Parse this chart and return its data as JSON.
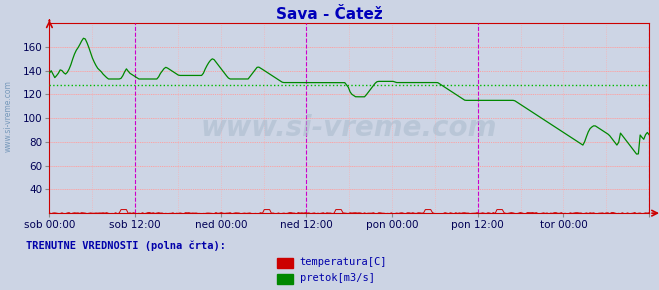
{
  "title": "Sava - Čatež",
  "title_color": "#0000bb",
  "bg_color": "#cdd5e5",
  "plot_bg_color": "#cdd5e5",
  "fig_bg_color": "#ccd4e4",
  "ylim": [
    20,
    180
  ],
  "yticks": [
    40,
    60,
    80,
    100,
    120,
    140,
    160
  ],
  "ytick_labels": [
    "40",
    "60",
    "80",
    "100",
    "120",
    "140",
    "160"
  ],
  "xtick_labels": [
    "sob 00:00",
    "sob 12:00",
    "ned 00:00",
    "ned 12:00",
    "pon 00:00",
    "pon 12:00",
    "tor 00:00",
    ""
  ],
  "pretok_color": "#008800",
  "temperatura_color": "#cc0000",
  "avg_line_color": "#00bb00",
  "avg_line_value": 128,
  "magenta_vlines_x": [
    1,
    3,
    5,
    7
  ],
  "watermark": "www.si-vreme.com",
  "sidebar_text": "www.si-vreme.com",
  "legend_text1": "temperatura[C]",
  "legend_text2": "pretok[m3/s]",
  "legend_title": "TRENUTNE VREDNOSTI (polna črta):",
  "pretok_data": [
    138,
    140,
    137,
    134,
    136,
    138,
    141,
    140,
    138,
    137,
    139,
    142,
    146,
    151,
    155,
    158,
    160,
    163,
    166,
    168,
    166,
    162,
    158,
    153,
    149,
    146,
    143,
    141,
    140,
    138,
    136,
    135,
    133,
    133,
    133,
    133,
    133,
    133,
    133,
    133,
    135,
    138,
    142,
    140,
    138,
    137,
    136,
    135,
    134,
    133,
    133,
    133,
    133,
    133,
    133,
    133,
    133,
    133,
    133,
    133,
    135,
    138,
    140,
    142,
    143,
    142,
    141,
    140,
    139,
    138,
    137,
    136,
    136,
    136,
    136,
    136,
    136,
    136,
    136,
    136,
    136,
    136,
    136,
    136,
    136,
    140,
    143,
    146,
    148,
    150,
    150,
    148,
    146,
    144,
    142,
    140,
    138,
    136,
    134,
    133,
    133,
    133,
    133,
    133,
    133,
    133,
    133,
    133,
    133,
    133,
    135,
    137,
    139,
    141,
    143,
    143,
    142,
    141,
    140,
    139,
    138,
    137,
    136,
    135,
    134,
    133,
    132,
    131,
    130,
    130,
    130,
    130,
    130,
    130,
    130,
    130,
    130,
    130,
    130,
    130,
    130,
    130,
    130,
    130,
    130,
    130,
    130,
    130,
    130,
    130,
    130,
    130,
    130,
    130,
    130,
    130,
    130,
    130,
    130,
    130,
    130,
    130,
    130,
    128,
    126,
    122,
    120,
    119,
    118,
    118,
    118,
    118,
    118,
    118,
    120,
    122,
    124,
    126,
    128,
    130,
    131,
    131,
    131,
    131,
    131,
    131,
    131,
    131,
    131,
    131,
    130,
    130,
    130,
    130,
    130,
    130,
    130,
    130,
    130,
    130,
    130,
    130,
    130,
    130,
    130,
    130,
    130,
    130,
    130,
    130,
    130,
    130,
    130,
    130,
    129,
    128,
    127,
    126,
    125,
    124,
    123,
    122,
    121,
    120,
    119,
    118,
    117,
    116,
    115,
    115,
    115,
    115,
    115,
    115,
    115,
    115,
    115,
    115,
    115,
    115,
    115,
    115,
    115,
    115,
    115,
    115,
    115,
    115,
    115,
    115,
    115,
    115,
    115,
    115,
    115,
    115,
    114,
    113,
    112,
    111,
    110,
    109,
    108,
    107,
    106,
    105,
    104,
    103,
    102,
    101,
    100,
    99,
    98,
    97,
    96,
    95,
    94,
    93,
    92,
    91,
    90,
    89,
    88,
    87,
    86,
    85,
    84,
    83,
    82,
    81,
    80,
    79,
    78,
    77,
    82,
    86,
    90,
    92,
    93,
    94,
    93,
    92,
    91,
    90,
    89,
    88,
    87,
    86,
    84,
    82,
    80,
    78,
    76,
    88,
    86,
    84,
    82,
    80,
    78,
    76,
    74,
    72,
    70,
    68,
    86,
    84,
    82,
    86,
    88,
    86
  ],
  "temperatura_base": 20,
  "temperatura_spike_indices": [
    40,
    120,
    160,
    210,
    250
  ],
  "n_points": 336
}
